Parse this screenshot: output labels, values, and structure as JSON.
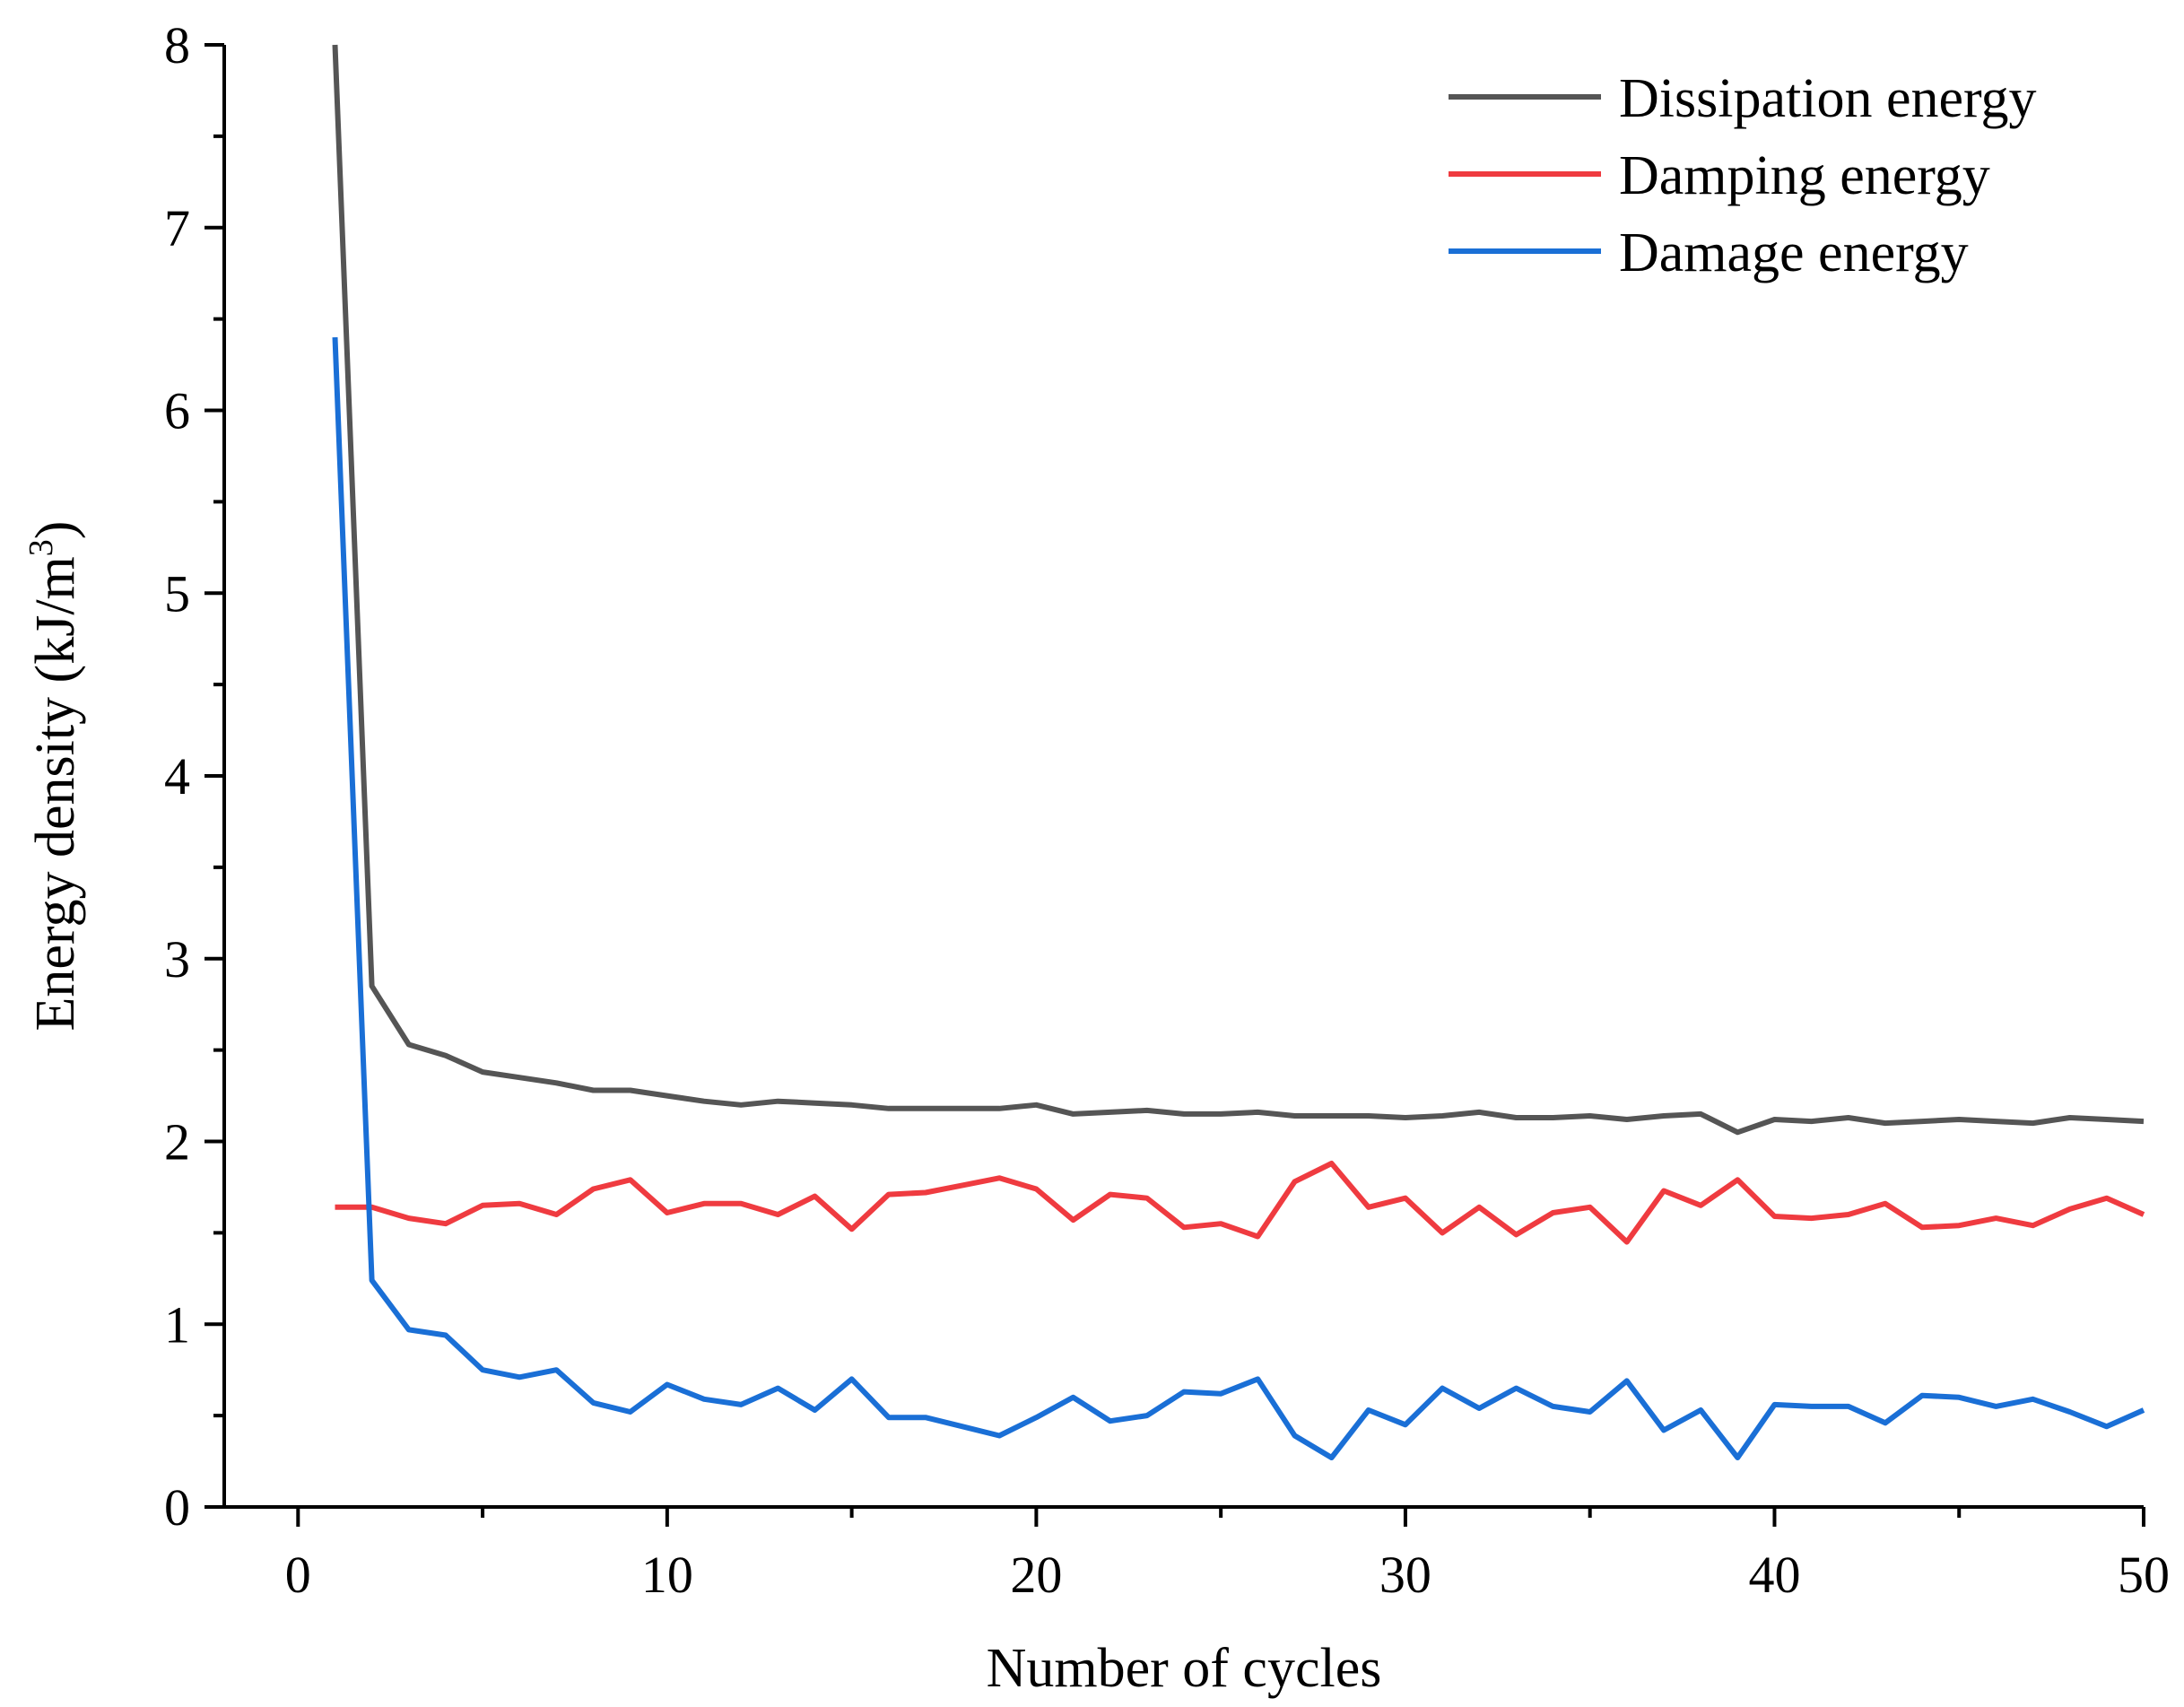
{
  "chart_data": {
    "type": "line",
    "title": "",
    "xlabel": "Number of cycles",
    "ylabel": "Energy density (kJ/m",
    "ylabel_superscript": "3",
    "ylabel_suffix": ")",
    "xlim": [
      -2,
      50
    ],
    "ylim": [
      0,
      8
    ],
    "xticks": [
      0,
      10,
      20,
      30,
      40,
      50
    ],
    "yticks": [
      0,
      1,
      2,
      3,
      4,
      5,
      6,
      7,
      8
    ],
    "xtick_labels": [
      "0",
      "10",
      "20",
      "30",
      "40",
      "50"
    ],
    "ytick_labels": [
      "0",
      "1",
      "2",
      "3",
      "4",
      "5",
      "6",
      "7",
      "8"
    ],
    "legend_position": "top-right",
    "grid": false,
    "x": [
      1,
      2,
      3,
      4,
      5,
      6,
      7,
      8,
      9,
      10,
      11,
      12,
      13,
      14,
      15,
      16,
      17,
      18,
      19,
      20,
      21,
      22,
      23,
      24,
      25,
      26,
      27,
      28,
      29,
      30,
      31,
      32,
      33,
      34,
      35,
      36,
      37,
      38,
      39,
      40,
      41,
      42,
      43,
      44,
      45,
      46,
      47,
      48,
      49,
      50
    ],
    "series": [
      {
        "name": "Dissipation energy",
        "color": "#555555",
        "values": [
          8.0,
          2.85,
          2.53,
          2.47,
          2.38,
          2.35,
          2.32,
          2.28,
          2.28,
          2.25,
          2.22,
          2.2,
          2.22,
          2.21,
          2.2,
          2.18,
          2.18,
          2.18,
          2.18,
          2.2,
          2.15,
          2.16,
          2.17,
          2.15,
          2.15,
          2.16,
          2.14,
          2.14,
          2.14,
          2.13,
          2.14,
          2.16,
          2.13,
          2.13,
          2.14,
          2.12,
          2.14,
          2.15,
          2.05,
          2.12,
          2.11,
          2.13,
          2.1,
          2.11,
          2.12,
          2.11,
          2.1,
          2.13,
          2.12,
          2.11
        ]
      },
      {
        "name": "Damping energy",
        "color": "#ef3b40",
        "values": [
          1.64,
          1.64,
          1.58,
          1.55,
          1.65,
          1.66,
          1.6,
          1.74,
          1.79,
          1.61,
          1.66,
          1.66,
          1.6,
          1.7,
          1.52,
          1.71,
          1.72,
          1.76,
          1.8,
          1.74,
          1.57,
          1.71,
          1.69,
          1.53,
          1.55,
          1.48,
          1.78,
          1.88,
          1.64,
          1.69,
          1.5,
          1.64,
          1.49,
          1.61,
          1.64,
          1.45,
          1.73,
          1.65,
          1.79,
          1.59,
          1.58,
          1.6,
          1.66,
          1.53,
          1.54,
          1.58,
          1.54,
          1.63,
          1.69,
          1.6
        ]
      },
      {
        "name": "Damage energy",
        "color": "#1a6fd6",
        "values": [
          6.4,
          1.24,
          0.97,
          0.94,
          0.75,
          0.71,
          0.75,
          0.57,
          0.52,
          0.67,
          0.59,
          0.56,
          0.65,
          0.53,
          0.7,
          0.49,
          0.49,
          0.44,
          0.39,
          0.49,
          0.6,
          0.47,
          0.5,
          0.63,
          0.62,
          0.7,
          0.39,
          0.27,
          0.53,
          0.45,
          0.65,
          0.54,
          0.65,
          0.55,
          0.52,
          0.69,
          0.42,
          0.53,
          0.27,
          0.56,
          0.55,
          0.55,
          0.46,
          0.61,
          0.6,
          0.55,
          0.59,
          0.52,
          0.44,
          0.53
        ]
      }
    ]
  }
}
